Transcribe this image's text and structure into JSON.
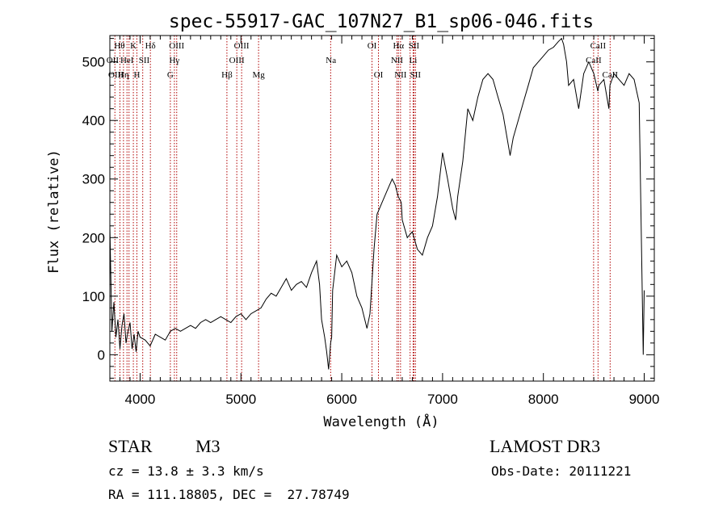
{
  "chart_data": {
    "type": "line",
    "title": "spec-55917-GAC_107N27_B1_sp06-046.fits",
    "xlabel": "Wavelength (Å)",
    "ylabel": "Flux (relative)",
    "xlim": [
      3700,
      9100
    ],
    "ylim": [
      -45,
      545
    ],
    "xticks": [
      4000,
      5000,
      6000,
      7000,
      8000,
      9000
    ],
    "yticks": [
      0,
      100,
      200,
      300,
      400,
      500
    ],
    "grid": false,
    "series": [
      {
        "name": "spectrum",
        "x": [
          3700,
          3720,
          3740,
          3760,
          3780,
          3800,
          3820,
          3840,
          3860,
          3880,
          3900,
          3920,
          3940,
          3960,
          3980,
          4000,
          4050,
          4100,
          4150,
          4200,
          4250,
          4300,
          4350,
          4400,
          4450,
          4500,
          4550,
          4600,
          4650,
          4700,
          4750,
          4800,
          4850,
          4900,
          4950,
          5000,
          5050,
          5100,
          5150,
          5200,
          5250,
          5300,
          5350,
          5400,
          5450,
          5500,
          5550,
          5600,
          5650,
          5700,
          5750,
          5780,
          5800,
          5830,
          5850,
          5870,
          5890,
          5900,
          5910,
          5930,
          5950,
          6000,
          6050,
          6100,
          6150,
          6200,
          6250,
          6280,
          6300,
          6320,
          6350,
          6400,
          6450,
          6500,
          6530,
          6560,
          6590,
          6600,
          6650,
          6700,
          6750,
          6800,
          6850,
          6900,
          6950,
          7000,
          7050,
          7100,
          7130,
          7150,
          7200,
          7250,
          7300,
          7350,
          7400,
          7450,
          7500,
          7550,
          7600,
          7650,
          7670,
          7700,
          7750,
          7800,
          7850,
          7900,
          7950,
          8000,
          8050,
          8100,
          8150,
          8180,
          8200,
          8230,
          8250,
          8300,
          8350,
          8400,
          8450,
          8500,
          8540,
          8550,
          8600,
          8650,
          8660,
          8700,
          8750,
          8800,
          8850,
          8900,
          8950,
          8990,
          9000
        ],
        "values": [
          220,
          40,
          90,
          30,
          60,
          10,
          50,
          70,
          20,
          40,
          55,
          10,
          35,
          5,
          40,
          30,
          25,
          15,
          35,
          30,
          25,
          40,
          45,
          40,
          45,
          50,
          45,
          55,
          60,
          55,
          60,
          65,
          60,
          55,
          65,
          70,
          60,
          70,
          75,
          80,
          95,
          105,
          100,
          115,
          130,
          110,
          120,
          125,
          115,
          140,
          160,
          120,
          60,
          30,
          5,
          -25,
          20,
          30,
          110,
          140,
          170,
          150,
          160,
          140,
          100,
          80,
          45,
          70,
          125,
          180,
          240,
          260,
          280,
          300,
          290,
          270,
          260,
          230,
          200,
          210,
          180,
          170,
          200,
          220,
          270,
          345,
          300,
          250,
          230,
          270,
          330,
          420,
          400,
          440,
          470,
          480,
          470,
          440,
          410,
          360,
          340,
          370,
          400,
          430,
          460,
          490,
          500,
          510,
          520,
          525,
          535,
          540,
          530,
          500,
          460,
          470,
          420,
          480,
          500,
          480,
          450,
          460,
          470,
          420,
          460,
          480,
          470,
          460,
          480,
          470,
          430,
          0,
          110
        ]
      }
    ],
    "line_markers": {
      "x": [
        3750,
        3800,
        3835,
        3870,
        3890,
        3933,
        3968,
        4026,
        4102,
        4300,
        4340,
        4363,
        4861,
        4959,
        5007,
        5175,
        5890,
        6300,
        6364,
        6548,
        6563,
        6583,
        6678,
        6708,
        6716,
        6731,
        8498,
        8542,
        8662
      ],
      "color": "#b00000"
    },
    "line_labels": [
      {
        "text": "Hθ",
        "x": 3796,
        "row": 0
      },
      {
        "text": "K",
        "x": 3933,
        "row": 0
      },
      {
        "text": "Hδ",
        "x": 4102,
        "row": 0
      },
      {
        "text": "OIII",
        "x": 4363,
        "row": 0
      },
      {
        "text": "OIII",
        "x": 5007,
        "row": 0
      },
      {
        "text": "OI",
        "x": 6300,
        "row": 0
      },
      {
        "text": "Hα",
        "x": 6563,
        "row": 0
      },
      {
        "text": "SII",
        "x": 6716,
        "row": 0
      },
      {
        "text": "CaII",
        "x": 8542,
        "row": 0
      },
      {
        "text": "OII",
        "x": 3727,
        "row": 1
      },
      {
        "text": "HeI",
        "x": 3870,
        "row": 1
      },
      {
        "text": "SII",
        "x": 4040,
        "row": 1
      },
      {
        "text": "Hγ",
        "x": 4340,
        "row": 1
      },
      {
        "text": "OIII",
        "x": 4959,
        "row": 1
      },
      {
        "text": "Na",
        "x": 5893,
        "row": 1
      },
      {
        "text": "NII",
        "x": 6548,
        "row": 1
      },
      {
        "text": "Li",
        "x": 6708,
        "row": 1
      },
      {
        "text": "CaII",
        "x": 8498,
        "row": 1
      },
      {
        "text": "OIII",
        "x": 3760,
        "row": 2
      },
      {
        "text": "Hη",
        "x": 3835,
        "row": 2
      },
      {
        "text": "H",
        "x": 3968,
        "row": 2
      },
      {
        "text": "G",
        "x": 4300,
        "row": 2
      },
      {
        "text": "Hβ",
        "x": 4861,
        "row": 2
      },
      {
        "text": "Mg",
        "x": 5175,
        "row": 2
      },
      {
        "text": "OI",
        "x": 6364,
        "row": 2
      },
      {
        "text": "NII",
        "x": 6583,
        "row": 2
      },
      {
        "text": "SII",
        "x": 6731,
        "row": 2
      },
      {
        "text": "CaII",
        "x": 8662,
        "row": 2
      }
    ]
  },
  "info": {
    "object_class": "STAR",
    "subclass": "M3",
    "survey": "LAMOST DR3",
    "redshift": "cz = 13.8 ± 3.3 km/s",
    "obs_date": "Obs-Date: 20111221",
    "coords": "RA = 111.18805, DEC =  27.78749"
  }
}
